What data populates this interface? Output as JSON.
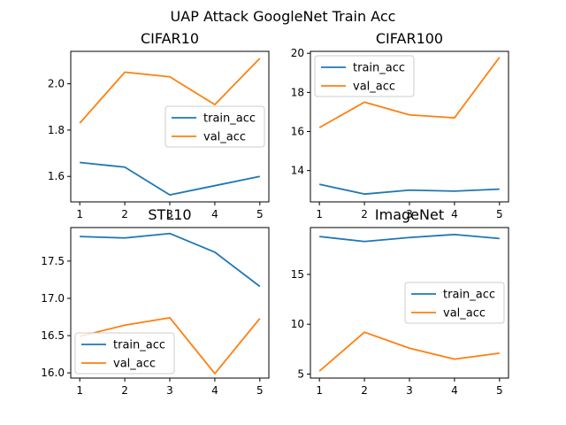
{
  "figure": {
    "title": "UAP Attack GoogleNet Train Acc"
  },
  "chart_data": [
    {
      "type": "line",
      "title": "CIFAR10",
      "x": [
        1,
        2,
        3,
        4,
        5
      ],
      "xlim": [
        0.8,
        5.2
      ],
      "ylim": [
        1.49,
        2.14
      ],
      "xticks": [
        1,
        2,
        3,
        4,
        5
      ],
      "yticks": [
        1.6,
        1.8,
        2.0
      ],
      "ytick_labels": [
        "1.6",
        "1.8",
        "2.0"
      ],
      "legend_loc": "center-right",
      "series": [
        {
          "name": "train_acc",
          "color": "#1f77b4",
          "values": [
            1.66,
            1.64,
            1.52,
            1.56,
            1.6
          ]
        },
        {
          "name": "val_acc",
          "color": "#ff7f0e",
          "values": [
            1.83,
            2.05,
            2.03,
            1.91,
            2.11
          ]
        }
      ]
    },
    {
      "type": "line",
      "title": "CIFAR100",
      "x": [
        1,
        2,
        3,
        4,
        5
      ],
      "xlim": [
        0.8,
        5.2
      ],
      "ylim": [
        12.4,
        20.1
      ],
      "xticks": [
        1,
        2,
        3,
        4,
        5
      ],
      "yticks": [
        14,
        16,
        18,
        20
      ],
      "ytick_labels": [
        "14",
        "16",
        "18",
        "20"
      ],
      "legend_loc": "upper-left",
      "series": [
        {
          "name": "train_acc",
          "color": "#1f77b4",
          "values": [
            13.3,
            12.8,
            13.0,
            12.95,
            13.05
          ]
        },
        {
          "name": "val_acc",
          "color": "#ff7f0e",
          "values": [
            16.2,
            17.5,
            16.85,
            16.7,
            19.8
          ]
        }
      ]
    },
    {
      "type": "line",
      "title": "STL10",
      "x": [
        1,
        2,
        3,
        4,
        5
      ],
      "xlim": [
        0.8,
        5.2
      ],
      "ylim": [
        15.93,
        17.95
      ],
      "xticks": [
        1,
        2,
        3,
        4,
        5
      ],
      "yticks": [
        16.0,
        16.5,
        17.0,
        17.5
      ],
      "ytick_labels": [
        "16.0",
        "16.5",
        "17.0",
        "17.5"
      ],
      "legend_loc": "lower-left",
      "series": [
        {
          "name": "train_acc",
          "color": "#1f77b4",
          "values": [
            17.83,
            17.81,
            17.87,
            17.62,
            17.16
          ]
        },
        {
          "name": "val_acc",
          "color": "#ff7f0e",
          "values": [
            16.49,
            16.64,
            16.74,
            15.99,
            16.73
          ]
        }
      ]
    },
    {
      "type": "line",
      "title": "ImageNet",
      "x": [
        1,
        2,
        3,
        4,
        5
      ],
      "xlim": [
        0.8,
        5.2
      ],
      "ylim": [
        4.6,
        19.7
      ],
      "xticks": [
        1,
        2,
        3,
        4,
        5
      ],
      "yticks": [
        5,
        10,
        15
      ],
      "ytick_labels": [
        "5",
        "10",
        "15"
      ],
      "legend_loc": "center-right",
      "series": [
        {
          "name": "train_acc",
          "color": "#1f77b4",
          "values": [
            18.8,
            18.3,
            18.7,
            19.0,
            18.6
          ]
        },
        {
          "name": "val_acc",
          "color": "#ff7f0e",
          "values": [
            5.3,
            9.2,
            7.6,
            6.5,
            7.1
          ]
        }
      ]
    }
  ]
}
